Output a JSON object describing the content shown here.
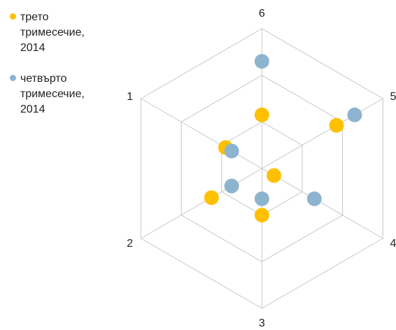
{
  "chart_data": {
    "type": "radar",
    "axes": [
      "1",
      "2",
      "3",
      "4",
      "5",
      "6"
    ],
    "series": [
      {
        "name": "трето тримесечие, 2014",
        "color": "#FFC000",
        "values": [
          1.8,
          2.5,
          2.0,
          0.6,
          3.7,
          2.3
        ]
      },
      {
        "name": "четвърто тримесечие, 2014",
        "color": "#8DB4CF",
        "values": [
          1.5,
          1.5,
          1.3,
          2.6,
          4.6,
          4.6
        ]
      }
    ],
    "rlim": [
      0,
      6
    ],
    "grid": true,
    "legend_position": "top-left"
  }
}
